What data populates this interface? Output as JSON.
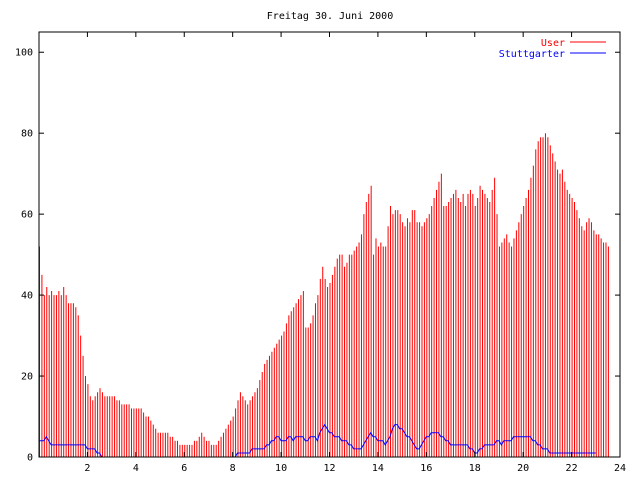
{
  "chart_data": {
    "type": "bar",
    "title": "Freitag 30. Juni 2000",
    "xlabel": "",
    "ylabel": "",
    "xlim": [
      0,
      24
    ],
    "ylim": [
      0,
      105
    ],
    "x_ticks": [
      2,
      4,
      6,
      8,
      10,
      12,
      14,
      16,
      18,
      20,
      22,
      24
    ],
    "y_ticks": [
      0,
      20,
      40,
      60,
      80,
      100
    ],
    "grid": false,
    "legend_position": "top-right",
    "series": [
      {
        "name": "User",
        "style": "impulses",
        "color": "#ff0000",
        "interval_hours": 0.1,
        "values": [
          52,
          45,
          40,
          42,
          40,
          41,
          40,
          40,
          41,
          40,
          42,
          40,
          38,
          38,
          38,
          37,
          35,
          30,
          25,
          20,
          18,
          15,
          14,
          15,
          16,
          17,
          16,
          15,
          15,
          15,
          15,
          15,
          14,
          14,
          13,
          13,
          13,
          13,
          12,
          12,
          12,
          12,
          12,
          11,
          10,
          10,
          9,
          8,
          7,
          6,
          6,
          6,
          6,
          6,
          5,
          5,
          4,
          4,
          3,
          3,
          3,
          3,
          3,
          3,
          4,
          4,
          5,
          6,
          5,
          4,
          4,
          3,
          3,
          3,
          4,
          5,
          6,
          7,
          8,
          9,
          10,
          12,
          14,
          16,
          15,
          14,
          13,
          14,
          15,
          16,
          17,
          19,
          21,
          23,
          24,
          25,
          26,
          27,
          28,
          29,
          30,
          31,
          33,
          35,
          36,
          37,
          38,
          39,
          40,
          41,
          32,
          32,
          33,
          35,
          38,
          40,
          44,
          47,
          44,
          42,
          43,
          45,
          47,
          49,
          50,
          50,
          47,
          48,
          50,
          50,
          51,
          52,
          53,
          55,
          60,
          63,
          65,
          67,
          50,
          54,
          52,
          53,
          52,
          52,
          57,
          62,
          60,
          61,
          61,
          60,
          58,
          57,
          59,
          58,
          61,
          61,
          58,
          58,
          57,
          58,
          59,
          60,
          62,
          64,
          66,
          68,
          70,
          62,
          62,
          63,
          64,
          65,
          66,
          64,
          63,
          65,
          62,
          65,
          66,
          65,
          62,
          64,
          67,
          66,
          65,
          64,
          63,
          66,
          69,
          60,
          52,
          53,
          54,
          55,
          53,
          52,
          54,
          56,
          58,
          60,
          62,
          64,
          66,
          69,
          72,
          76,
          78,
          79,
          79,
          80,
          79,
          77,
          75,
          73,
          71,
          70,
          71,
          68,
          66,
          65,
          64,
          63,
          61,
          59,
          57,
          56,
          58,
          59,
          58,
          56,
          55,
          55,
          54,
          53,
          53,
          52
        ]
      },
      {
        "name": "Stuttgarter",
        "style": "lines",
        "color": "#0000ff",
        "interval_hours": 0.1,
        "values": [
          4,
          4,
          4,
          5,
          4,
          3,
          3,
          3,
          3,
          3,
          3,
          3,
          3,
          3,
          3,
          3,
          3,
          3,
          3,
          3,
          2,
          2,
          2,
          2,
          1,
          1,
          0,
          0,
          0,
          0,
          0,
          0,
          0,
          0,
          0,
          0,
          0,
          0,
          0,
          0,
          0,
          0,
          0,
          0,
          0,
          0,
          0,
          0,
          0,
          0,
          0,
          0,
          0,
          0,
          0,
          0,
          0,
          0,
          0,
          0,
          0,
          0,
          0,
          0,
          0,
          0,
          0,
          0,
          0,
          0,
          0,
          0,
          0,
          0,
          0,
          0,
          0,
          0,
          0,
          0,
          0,
          0,
          1,
          1,
          1,
          1,
          1,
          1,
          2,
          2,
          2,
          2,
          2,
          2,
          3,
          3,
          4,
          4,
          5,
          5,
          4,
          4,
          4,
          5,
          5,
          4,
          5,
          5,
          5,
          5,
          4,
          4,
          5,
          5,
          5,
          4,
          6,
          7,
          8,
          7,
          6,
          6,
          5,
          5,
          5,
          4,
          4,
          4,
          3,
          3,
          2,
          2,
          2,
          2,
          3,
          4,
          5,
          6,
          5,
          5,
          4,
          4,
          4,
          3,
          4,
          5,
          7,
          8,
          8,
          7,
          7,
          6,
          5,
          5,
          4,
          3,
          2,
          2,
          3,
          4,
          5,
          5,
          6,
          6,
          6,
          6,
          5,
          5,
          4,
          4,
          3,
          3,
          3,
          3,
          3,
          3,
          3,
          3,
          2,
          2,
          1,
          1,
          2,
          2,
          3,
          3,
          3,
          3,
          3,
          4,
          4,
          3,
          4,
          4,
          4,
          4,
          5,
          5,
          5,
          5,
          5,
          5,
          5,
          5,
          4,
          4,
          3,
          3,
          2,
          2,
          2,
          1,
          1,
          1,
          1,
          1,
          1,
          1,
          1,
          1,
          1,
          1,
          1,
          1,
          1,
          1,
          1,
          1,
          1,
          1,
          1
        ]
      }
    ]
  }
}
